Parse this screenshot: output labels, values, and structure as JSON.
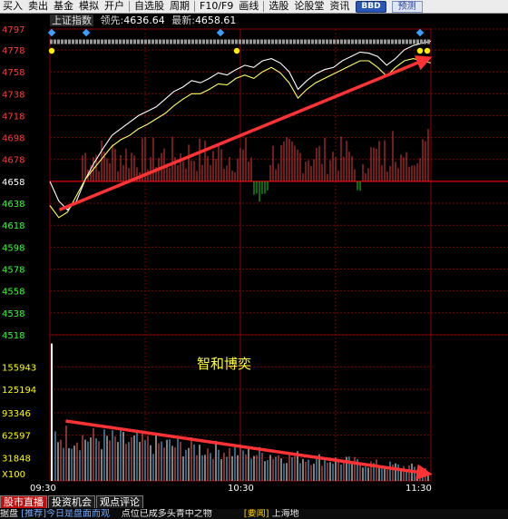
{
  "menu": {
    "items": [
      "买入",
      "卖出",
      "基金",
      "模拟",
      "开户",
      "自选股",
      "周期",
      "F10/F9",
      "画线",
      "选股",
      "论股堂",
      "资讯"
    ],
    "bbd": "BBD",
    "forecast": "预测"
  },
  "header": {
    "index_name": "上证指数",
    "lead_label": "领先:",
    "lead_value": "4636.64",
    "latest_label": "最新:",
    "latest_value": "4658.61"
  },
  "price_axis": {
    "ticks": [
      "4797",
      "4778",
      "4758",
      "4738",
      "4718",
      "4698",
      "4678",
      "4658",
      "4638",
      "4618",
      "4598",
      "4578",
      "4558",
      "4538",
      "4518"
    ],
    "prev_close": "4658",
    "colors": {
      "up": "#ff3b3b",
      "base": "#ffffff",
      "down": "#33ff33"
    }
  },
  "volume_axis": {
    "ticks": [
      "155943",
      "125194",
      "93346",
      "62597",
      "31848"
    ],
    "unit": "X100"
  },
  "time_axis": {
    "labels": [
      "09:30",
      "10:30",
      "11:30"
    ]
  },
  "annotation": {
    "watermark": "智和博奕"
  },
  "tabs": [
    {
      "label": "股市直播",
      "active": true
    },
    {
      "label": "投资机会",
      "active": false
    },
    {
      "label": "观点评论",
      "active": false
    }
  ],
  "ticker": {
    "segment1": "据盘",
    "segment2": "[推荐]今日是盘面而观",
    "segment3": "点位已成多头青中之物",
    "segment4": "[要闻]",
    "segment5": "上海地"
  },
  "chart_data": {
    "type": "line",
    "title": "上证指数",
    "x_range": [
      "09:30",
      "11:30"
    ],
    "ylim": [
      4518,
      4797
    ],
    "prev_close": 4658,
    "series": [
      {
        "name": "最新",
        "values": [
          4658,
          4640,
          4632,
          4640,
          4660,
          4675,
          4688,
          4700,
          4706,
          4712,
          4718,
          4722,
          4726,
          4733,
          4740,
          4744,
          4750,
          4748,
          4752,
          4757,
          4755,
          4760,
          4764,
          4762,
          4768,
          4770,
          4766,
          4758,
          4742,
          4750,
          4756,
          4760,
          4762,
          4768,
          4772,
          4776,
          4775,
          4772,
          4764,
          4770,
          4778,
          4782,
          4784,
          4786
        ]
      },
      {
        "name": "领先",
        "values": [
          4636,
          4625,
          4630,
          4645,
          4660,
          4670,
          4680,
          4690,
          4696,
          4700,
          4706,
          4710,
          4715,
          4720,
          4727,
          4733,
          4738,
          4738,
          4742,
          4747,
          4746,
          4752,
          4755,
          4752,
          4758,
          4762,
          4757,
          4748,
          4734,
          4742,
          4748,
          4752,
          4756,
          4760,
          4764,
          4768,
          4768,
          4762,
          4754,
          4762,
          4768,
          4770,
          4768,
          4766
        ]
      }
    ],
    "annotations": [
      {
        "type": "arrow",
        "from": {
          "time": "09:33",
          "price": 4632
        },
        "to": {
          "time": "11:29",
          "price": 4770
        },
        "color": "#ff3333"
      },
      {
        "type": "arrow",
        "from": {
          "time": "09:35",
          "volume": 82000
        },
        "to": {
          "time": "11:29",
          "volume": 10000
        },
        "color": "#ff3333"
      }
    ],
    "volume": {
      "ylim": [
        0,
        190000
      ],
      "first_bar": 188000,
      "trend": "decreasing"
    }
  }
}
